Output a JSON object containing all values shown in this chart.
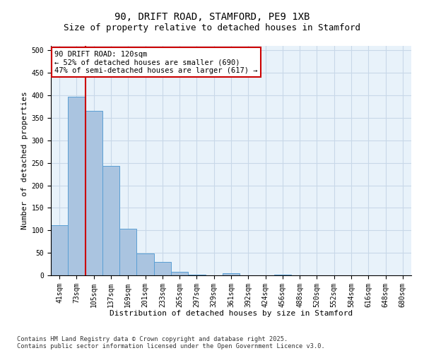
{
  "title": "90, DRIFT ROAD, STAMFORD, PE9 1XB",
  "subtitle": "Size of property relative to detached houses in Stamford",
  "xlabel": "Distribution of detached houses by size in Stamford",
  "ylabel": "Number of detached properties",
  "categories": [
    "41sqm",
    "73sqm",
    "105sqm",
    "137sqm",
    "169sqm",
    "201sqm",
    "233sqm",
    "265sqm",
    "297sqm",
    "329sqm",
    "361sqm",
    "392sqm",
    "424sqm",
    "456sqm",
    "488sqm",
    "520sqm",
    "552sqm",
    "584sqm",
    "616sqm",
    "648sqm",
    "680sqm"
  ],
  "values": [
    112,
    397,
    365,
    243,
    104,
    49,
    30,
    8,
    2,
    0,
    5,
    0,
    0,
    2,
    0,
    0,
    0,
    0,
    0,
    0,
    0
  ],
  "bar_color": "#aac4e0",
  "bar_edge_color": "#5a9fd4",
  "grid_color": "#c8d8e8",
  "bg_color": "#e8f2fa",
  "vline_color": "#cc0000",
  "annotation_text": "90 DRIFT ROAD: 120sqm\n← 52% of detached houses are smaller (690)\n47% of semi-detached houses are larger (617) →",
  "annotation_box_color": "#cc0000",
  "ylim": [
    0,
    510
  ],
  "yticks": [
    0,
    50,
    100,
    150,
    200,
    250,
    300,
    350,
    400,
    450,
    500
  ],
  "footnote": "Contains HM Land Registry data © Crown copyright and database right 2025.\nContains public sector information licensed under the Open Government Licence v3.0.",
  "title_fontsize": 10,
  "subtitle_fontsize": 9,
  "tick_fontsize": 7,
  "label_fontsize": 8,
  "annot_fontsize": 7.5
}
